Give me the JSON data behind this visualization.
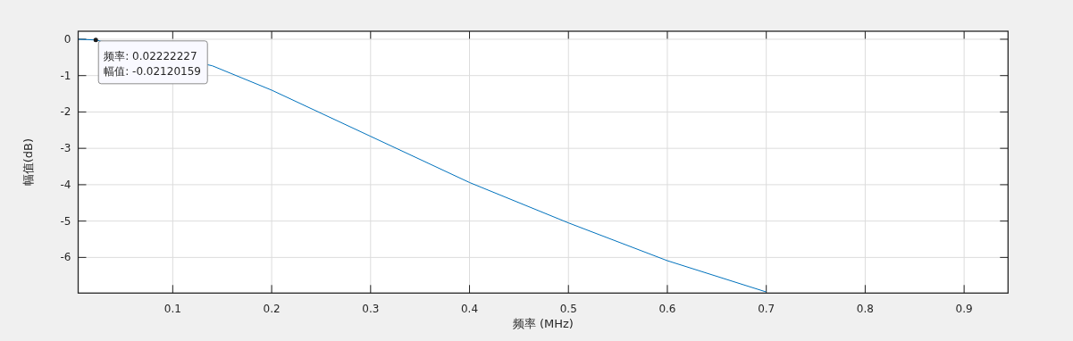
{
  "chart_data": {
    "type": "line",
    "xlabel": "频率 (MHz)",
    "ylabel": "幅值(dB)",
    "xlim": [
      0.0044,
      0.9444
    ],
    "xticks": [
      0.1,
      0.2,
      0.3,
      0.4,
      0.5,
      0.6,
      0.7,
      0.8,
      0.9
    ],
    "ylim": [
      -6.98,
      0.22
    ],
    "yticks": [
      0,
      -1,
      -2,
      -3,
      -4,
      -5,
      -6
    ],
    "grid": true,
    "series": [
      {
        "color": "#0072bd",
        "x": [
          0.0044,
          0.022,
          0.14,
          0.2,
          0.3,
          0.4,
          0.5,
          0.6,
          0.7
        ],
        "values": [
          0,
          -0.02,
          -0.73,
          -1.4,
          -2.67,
          -3.94,
          -5.05,
          -6.09,
          -6.95
        ]
      }
    ],
    "annotations": [
      {
        "text": "频率: 0.02222227",
        "x": 0.0222,
        "y": -0.0212
      },
      {
        "text": "幅值: -0.02120159",
        "x": 0.0222,
        "y": -0.0212
      }
    ]
  }
}
